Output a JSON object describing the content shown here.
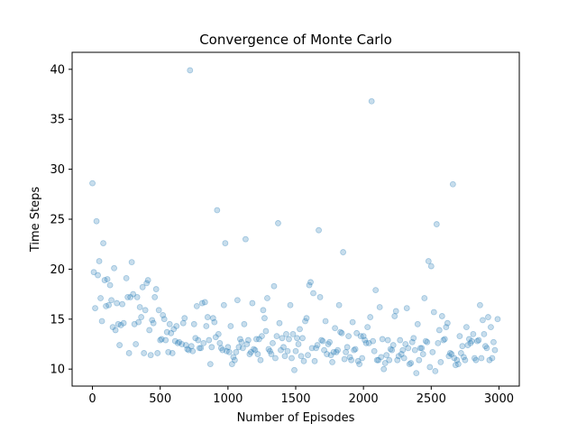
{
  "chart_data": {
    "type": "scatter",
    "title": "Convergence of Monte Carlo",
    "xlabel": "Number of Episodes",
    "ylabel": "Time Steps",
    "xlim": [
      -150,
      3150
    ],
    "ylim": [
      8.3,
      41.7
    ],
    "xticks": [
      0,
      500,
      1000,
      1500,
      2000,
      2500,
      3000
    ],
    "yticks": [
      10,
      15,
      20,
      25,
      30,
      35,
      40
    ],
    "grid": false,
    "legend": "none",
    "colors": {
      "marker": "#1f77b4",
      "axes": "#000000",
      "background": "#ffffff"
    },
    "marker_alpha": 0.25,
    "points": [
      [
        0,
        28.6
      ],
      [
        10,
        19.7
      ],
      [
        20,
        16.1
      ],
      [
        30,
        24.8
      ],
      [
        40,
        19.4
      ],
      [
        50,
        20.8
      ],
      [
        60,
        17.1
      ],
      [
        70,
        14.8
      ],
      [
        80,
        22.6
      ],
      [
        90,
        18.9
      ],
      [
        100,
        16.3
      ],
      [
        110,
        19.0
      ],
      [
        120,
        16.4
      ],
      [
        130,
        18.4
      ],
      [
        140,
        16.9
      ],
      [
        150,
        14.2
      ],
      [
        160,
        20.1
      ],
      [
        170,
        13.9
      ],
      [
        180,
        16.6
      ],
      [
        190,
        14.5
      ],
      [
        200,
        12.4
      ],
      [
        210,
        14.4
      ],
      [
        220,
        16.5
      ],
      [
        230,
        14.6
      ],
      [
        250,
        19.1
      ],
      [
        260,
        17.2
      ],
      [
        270,
        11.6
      ],
      [
        280,
        17.2
      ],
      [
        290,
        20.7
      ],
      [
        300,
        17.5
      ],
      [
        310,
        14.5
      ],
      [
        320,
        12.5
      ],
      [
        330,
        17.2
      ],
      [
        340,
        14.7
      ],
      [
        350,
        16.2
      ],
      [
        360,
        15.2
      ],
      [
        370,
        18.2
      ],
      [
        380,
        11.6
      ],
      [
        390,
        15.9
      ],
      [
        400,
        18.6
      ],
      [
        410,
        18.9
      ],
      [
        420,
        13.9
      ],
      [
        430,
        11.4
      ],
      [
        440,
        14.9
      ],
      [
        450,
        14.6
      ],
      [
        460,
        17.2
      ],
      [
        470,
        18.0
      ],
      [
        480,
        11.6
      ],
      [
        490,
        15.9
      ],
      [
        500,
        12.9
      ],
      [
        510,
        13.0
      ],
      [
        520,
        15.4
      ],
      [
        530,
        15.0
      ],
      [
        540,
        12.9
      ],
      [
        550,
        13.7
      ],
      [
        560,
        11.7
      ],
      [
        570,
        14.5
      ],
      [
        580,
        13.6
      ],
      [
        590,
        11.6
      ],
      [
        600,
        14.0
      ],
      [
        610,
        12.8
      ],
      [
        620,
        14.3
      ],
      [
        630,
        12.6
      ],
      [
        640,
        12.7
      ],
      [
        660,
        12.5
      ],
      [
        670,
        14.6
      ],
      [
        680,
        15.1
      ],
      [
        690,
        12.4
      ],
      [
        700,
        12.0
      ],
      [
        710,
        11.9
      ],
      [
        720,
        39.9
      ],
      [
        730,
        12.3
      ],
      [
        740,
        11.8
      ],
      [
        750,
        14.5
      ],
      [
        760,
        13.1
      ],
      [
        770,
        16.3
      ],
      [
        780,
        12.9
      ],
      [
        790,
        12.1
      ],
      [
        800,
        12.1
      ],
      [
        810,
        16.6
      ],
      [
        820,
        12.6
      ],
      [
        830,
        16.7
      ],
      [
        840,
        14.3
      ],
      [
        850,
        15.2
      ],
      [
        860,
        12.9
      ],
      [
        870,
        10.5
      ],
      [
        880,
        12.2
      ],
      [
        890,
        15.1
      ],
      [
        900,
        14.7
      ],
      [
        910,
        13.2
      ],
      [
        920,
        25.9
      ],
      [
        930,
        13.5
      ],
      [
        940,
        12.6
      ],
      [
        950,
        12.1
      ],
      [
        960,
        11.9
      ],
      [
        970,
        16.4
      ],
      [
        980,
        22.6
      ],
      [
        990,
        11.8
      ],
      [
        1000,
        12.2
      ],
      [
        1010,
        11.7
      ],
      [
        1020,
        14.3
      ],
      [
        1030,
        10.5
      ],
      [
        1040,
        11.2
      ],
      [
        1050,
        10.9
      ],
      [
        1060,
        11.7
      ],
      [
        1070,
        16.9
      ],
      [
        1080,
        12.2
      ],
      [
        1090,
        13.0
      ],
      [
        1100,
        12.7
      ],
      [
        1110,
        12.1
      ],
      [
        1120,
        14.5
      ],
      [
        1130,
        23.0
      ],
      [
        1140,
        12.5
      ],
      [
        1150,
        12.9
      ],
      [
        1160,
        11.5
      ],
      [
        1170,
        11.7
      ],
      [
        1180,
        16.6
      ],
      [
        1190,
        12.0
      ],
      [
        1200,
        11.9
      ],
      [
        1210,
        13.0
      ],
      [
        1220,
        11.5
      ],
      [
        1230,
        13.0
      ],
      [
        1240,
        10.9
      ],
      [
        1250,
        13.3
      ],
      [
        1260,
        15.9
      ],
      [
        1270,
        15.1
      ],
      [
        1280,
        13.8
      ],
      [
        1290,
        17.1
      ],
      [
        1300,
        12.0
      ],
      [
        1310,
        11.8
      ],
      [
        1320,
        11.5
      ],
      [
        1330,
        12.6
      ],
      [
        1340,
        18.3
      ],
      [
        1350,
        11.1
      ],
      [
        1360,
        13.3
      ],
      [
        1370,
        24.6
      ],
      [
        1380,
        14.6
      ],
      [
        1390,
        11.9
      ],
      [
        1400,
        13.1
      ],
      [
        1410,
        12.2
      ],
      [
        1420,
        11.3
      ],
      [
        1430,
        13.5
      ],
      [
        1440,
        11.8
      ],
      [
        1450,
        13.0
      ],
      [
        1460,
        16.4
      ],
      [
        1470,
        11.1
      ],
      [
        1480,
        13.5
      ],
      [
        1490,
        9.9
      ],
      [
        1500,
        11.8
      ],
      [
        1510,
        13.1
      ],
      [
        1520,
        12.5
      ],
      [
        1530,
        14.0
      ],
      [
        1540,
        11.3
      ],
      [
        1550,
        13.1
      ],
      [
        1560,
        10.8
      ],
      [
        1570,
        14.8
      ],
      [
        1580,
        15.1
      ],
      [
        1590,
        11.4
      ],
      [
        1600,
        18.4
      ],
      [
        1610,
        18.7
      ],
      [
        1620,
        12.1
      ],
      [
        1630,
        17.6
      ],
      [
        1640,
        10.8
      ],
      [
        1650,
        12.1
      ],
      [
        1660,
        12.4
      ],
      [
        1670,
        23.9
      ],
      [
        1680,
        17.2
      ],
      [
        1690,
        12.9
      ],
      [
        1700,
        12.8
      ],
      [
        1710,
        11.9
      ],
      [
        1720,
        14.8
      ],
      [
        1730,
        11.5
      ],
      [
        1740,
        12.5
      ],
      [
        1750,
        12.7
      ],
      [
        1760,
        11.4
      ],
      [
        1770,
        10.7
      ],
      [
        1780,
        11.7
      ],
      [
        1790,
        14.1
      ],
      [
        1800,
        11.7
      ],
      [
        1810,
        11.9
      ],
      [
        1820,
        16.4
      ],
      [
        1830,
        13.7
      ],
      [
        1840,
        13.6
      ],
      [
        1850,
        21.7
      ],
      [
        1860,
        11.0
      ],
      [
        1870,
        11.7
      ],
      [
        1880,
        12.2
      ],
      [
        1890,
        13.3
      ],
      [
        1900,
        11.2
      ],
      [
        1910,
        10.9
      ],
      [
        1920,
        14.7
      ],
      [
        1930,
        11.9
      ],
      [
        1940,
        12.0
      ],
      [
        1950,
        13.6
      ],
      [
        1960,
        10.8
      ],
      [
        1970,
        10.5
      ],
      [
        1980,
        13.3
      ],
      [
        1990,
        11.1
      ],
      [
        2000,
        13.3
      ],
      [
        2010,
        12.9
      ],
      [
        2020,
        12.6
      ],
      [
        2030,
        14.2
      ],
      [
        2040,
        12.6
      ],
      [
        2050,
        15.2
      ],
      [
        2060,
        36.8
      ],
      [
        2070,
        12.8
      ],
      [
        2080,
        11.8
      ],
      [
        2090,
        17.9
      ],
      [
        2100,
        10.9
      ],
      [
        2110,
        10.9
      ],
      [
        2120,
        16.2
      ],
      [
        2130,
        11.2
      ],
      [
        2140,
        13.0
      ],
      [
        2150,
        10.0
      ],
      [
        2160,
        10.6
      ],
      [
        2170,
        11.4
      ],
      [
        2180,
        12.9
      ],
      [
        2190,
        10.9
      ],
      [
        2200,
        12.0
      ],
      [
        2210,
        11.9
      ],
      [
        2220,
        12.4
      ],
      [
        2230,
        15.3
      ],
      [
        2240,
        15.8
      ],
      [
        2250,
        10.9
      ],
      [
        2260,
        11.3
      ],
      [
        2270,
        12.9
      ],
      [
        2280,
        11.5
      ],
      [
        2290,
        11.9
      ],
      [
        2300,
        11.1
      ],
      [
        2310,
        12.5
      ],
      [
        2320,
        16.1
      ],
      [
        2330,
        12.1
      ],
      [
        2340,
        10.5
      ],
      [
        2350,
        10.6
      ],
      [
        2360,
        12.7
      ],
      [
        2370,
        13.1
      ],
      [
        2380,
        11.9
      ],
      [
        2390,
        9.6
      ],
      [
        2400,
        14.5
      ],
      [
        2410,
        10.9
      ],
      [
        2420,
        12.1
      ],
      [
        2430,
        12.1
      ],
      [
        2440,
        11.5
      ],
      [
        2450,
        17.1
      ],
      [
        2460,
        12.8
      ],
      [
        2470,
        12.7
      ],
      [
        2480,
        20.8
      ],
      [
        2490,
        10.2
      ],
      [
        2500,
        20.3
      ],
      [
        2510,
        11.7
      ],
      [
        2520,
        15.7
      ],
      [
        2530,
        9.8
      ],
      [
        2540,
        24.5
      ],
      [
        2550,
        12.6
      ],
      [
        2560,
        13.9
      ],
      [
        2570,
        10.7
      ],
      [
        2580,
        15.3
      ],
      [
        2590,
        12.9
      ],
      [
        2600,
        13.0
      ],
      [
        2610,
        14.2
      ],
      [
        2620,
        14.6
      ],
      [
        2630,
        11.3
      ],
      [
        2640,
        11.6
      ],
      [
        2650,
        11.5
      ],
      [
        2660,
        28.5
      ],
      [
        2670,
        11.1
      ],
      [
        2680,
        10.4
      ],
      [
        2690,
        10.9
      ],
      [
        2700,
        10.5
      ],
      [
        2710,
        13.3
      ],
      [
        2720,
        11.6
      ],
      [
        2730,
        12.3
      ],
      [
        2740,
        11.2
      ],
      [
        2750,
        10.9
      ],
      [
        2760,
        14.2
      ],
      [
        2770,
        12.4
      ],
      [
        2780,
        13.0
      ],
      [
        2790,
        12.6
      ],
      [
        2800,
        12.8
      ],
      [
        2810,
        13.5
      ],
      [
        2820,
        11.1
      ],
      [
        2830,
        10.9
      ],
      [
        2840,
        12.8
      ],
      [
        2850,
        12.9
      ],
      [
        2860,
        16.4
      ],
      [
        2870,
        11.1
      ],
      [
        2880,
        14.9
      ],
      [
        2890,
        13.5
      ],
      [
        2900,
        12.3
      ],
      [
        2910,
        12.1
      ],
      [
        2920,
        15.2
      ],
      [
        2930,
        10.9
      ],
      [
        2940,
        14.2
      ],
      [
        2950,
        11.1
      ],
      [
        2960,
        12.7
      ],
      [
        2970,
        11.9
      ],
      [
        2990,
        15.0
      ]
    ]
  }
}
